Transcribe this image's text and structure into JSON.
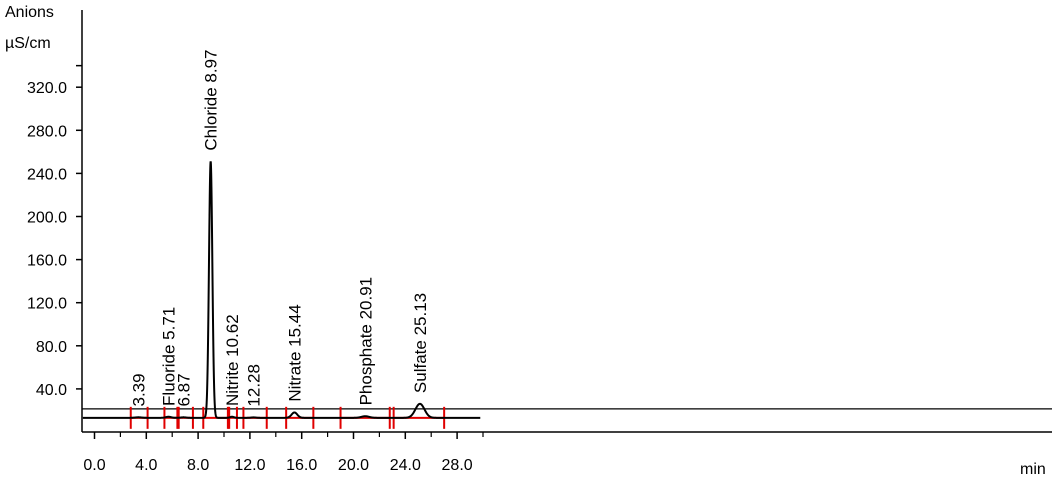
{
  "chart_data": {
    "type": "line",
    "ylabel_line1": "Anions",
    "ylabel_line2": "µS/cm",
    "xlabel": "min",
    "xlim": [
      0,
      30
    ],
    "ylim": [
      0,
      360
    ],
    "x_ticks": [
      {
        "value": 0,
        "label": "0.0"
      },
      {
        "value": 4,
        "label": "4.0"
      },
      {
        "value": 8,
        "label": "8.0"
      },
      {
        "value": 12,
        "label": "12.0"
      },
      {
        "value": 16,
        "label": "16.0"
      },
      {
        "value": 20,
        "label": "20.0"
      },
      {
        "value": 24,
        "label": "24.0"
      },
      {
        "value": 28,
        "label": "28.0"
      }
    ],
    "y_ticks": [
      {
        "value": 40,
        "label": "40.0"
      },
      {
        "value": 80,
        "label": "80.0"
      },
      {
        "value": 120,
        "label": "120.0"
      },
      {
        "value": 160,
        "label": "160.0"
      },
      {
        "value": 200,
        "label": "200.0"
      },
      {
        "value": 240,
        "label": "240.0"
      },
      {
        "value": 280,
        "label": "280.0"
      },
      {
        "value": 320,
        "label": "320.0"
      }
    ],
    "y_minor_ticks": [
      340
    ],
    "baseline": 15,
    "trace_color": "#000000",
    "integration_color": "#e00000",
    "peaks": [
      {
        "rt": 3.39,
        "label": "3.39",
        "height": 0.5,
        "width": 0.25
      },
      {
        "rt": 5.71,
        "label": "Fluoride 5.71",
        "height": 1.0,
        "width": 0.2
      },
      {
        "rt": 6.87,
        "label": "6.87",
        "height": 0.5,
        "width": 0.2
      },
      {
        "rt": 8.97,
        "label": "Chloride 8.97",
        "height": 238,
        "width": 0.13
      },
      {
        "rt": 10.62,
        "label": "Nitrite 10.62",
        "height": 1.0,
        "width": 0.15
      },
      {
        "rt": 12.28,
        "label": "12.28",
        "height": 0.4,
        "width": 0.2
      },
      {
        "rt": 15.44,
        "label": "Nitrate 15.44",
        "height": 5,
        "width": 0.22
      },
      {
        "rt": 20.91,
        "label": "Phosphate 20.91",
        "height": 1.5,
        "width": 0.3
      },
      {
        "rt": 25.13,
        "label": "Sulfate 25.13",
        "height": 13,
        "width": 0.35
      }
    ],
    "integration_windows": [
      [
        2.8,
        4.1
      ],
      [
        5.4,
        6.4
      ],
      [
        6.5,
        7.6
      ],
      [
        8.4,
        10.3
      ],
      [
        10.4,
        11.0
      ],
      [
        11.5,
        13.3
      ],
      [
        14.8,
        16.9
      ],
      [
        19.0,
        22.8
      ],
      [
        23.1,
        27.0
      ]
    ]
  }
}
